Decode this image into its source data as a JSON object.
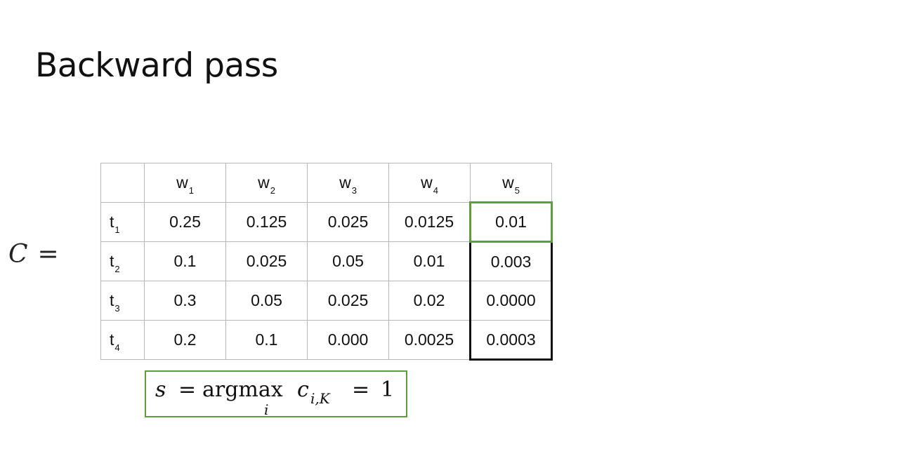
{
  "slide": {
    "title": "Backward pass"
  },
  "matrix_label": {
    "symbol": "C",
    "equals": "="
  },
  "table": {
    "columns": [
      {
        "base": "w",
        "sub": "1"
      },
      {
        "base": "w",
        "sub": "2"
      },
      {
        "base": "w",
        "sub": "3"
      },
      {
        "base": "w",
        "sub": "4"
      },
      {
        "base": "w",
        "sub": "5"
      }
    ],
    "rows": [
      {
        "base": "t",
        "sub": "1",
        "values": [
          "0.25",
          "0.125",
          "0.025",
          "0.0125",
          "0.01"
        ]
      },
      {
        "base": "t",
        "sub": "2",
        "values": [
          "0.1",
          "0.025",
          "0.05",
          "0.01",
          "0.003"
        ]
      },
      {
        "base": "t",
        "sub": "3",
        "values": [
          "0.3",
          "0.05",
          "0.025",
          "0.02",
          "0.0000"
        ]
      },
      {
        "base": "t",
        "sub": "4",
        "values": [
          "0.2",
          "0.1",
          "0.000",
          "0.0025",
          "0.0003"
        ]
      }
    ]
  },
  "formula": {
    "lhs": "s",
    "equals": "=",
    "operator": "argmax",
    "operator_sub": "i",
    "var": "c",
    "var_sub": "i,K",
    "equals2": "=",
    "value": "1"
  },
  "colors": {
    "highlight_green": "#5f9e3c",
    "highlight_black": "#111111",
    "grid": "#b8b8b8"
  }
}
